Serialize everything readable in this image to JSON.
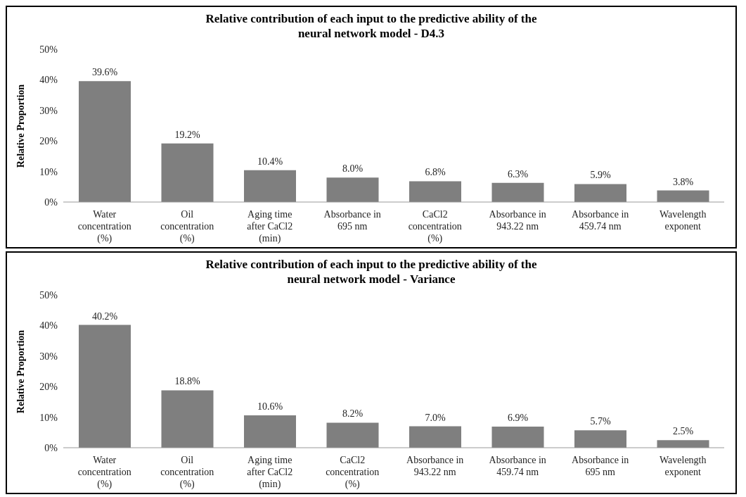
{
  "chart_data": [
    {
      "type": "bar",
      "title": "Relative contribution of each input to the predictive ability of the neural network model - D4.3",
      "ylabel": "Relative Proportion",
      "categories": [
        "Water concentration (%)",
        "Oil concentration (%)",
        "Aging time after CaCl2 (min)",
        "Absorbance in 695 nm",
        "CaCl2 concentration (%)",
        "Absorbance in 943.22 nm",
        "Absorbance in 459.74 nm",
        "Wavelength exponent"
      ],
      "values": [
        39.6,
        19.2,
        10.4,
        8.0,
        6.8,
        6.3,
        5.9,
        3.8
      ],
      "value_labels": [
        "39.6%",
        "19.2%",
        "10.4%",
        "8.0%",
        "6.8%",
        "6.3%",
        "5.9%",
        "3.8%"
      ],
      "color": "#7f7f7f",
      "ylim": [
        0,
        50
      ],
      "yticks": [
        {
          "value": 0,
          "label": "0%"
        },
        {
          "value": 10,
          "label": "10%"
        },
        {
          "value": 20,
          "label": "20%"
        },
        {
          "value": 30,
          "label": "30%"
        },
        {
          "value": 40,
          "label": "40%"
        },
        {
          "value": 50,
          "label": "50%"
        }
      ],
      "grid": false
    },
    {
      "type": "bar",
      "title": "Relative contribution of each input to the predictive ability of the neural network model - Variance",
      "ylabel": "Relative Proportion",
      "categories": [
        "Water concentration (%)",
        "Oil concentration (%)",
        "Aging time after CaCl2 (min)",
        "CaCl2 concentration (%)",
        "Absorbance in 943.22 nm",
        "Absorbance in 459.74 nm",
        "Absorbance in 695 nm",
        "Wavelength exponent"
      ],
      "values": [
        40.2,
        18.8,
        10.6,
        8.2,
        7.0,
        6.9,
        5.7,
        2.5
      ],
      "value_labels": [
        "40.2%",
        "18.8%",
        "10.6%",
        "8.2%",
        "7.0%",
        "6.9%",
        "5.7%",
        "2.5%"
      ],
      "color": "#7f7f7f",
      "ylim": [
        0,
        50
      ],
      "yticks": [
        {
          "value": 0,
          "label": "0%"
        },
        {
          "value": 10,
          "label": "10%"
        },
        {
          "value": 20,
          "label": "20%"
        },
        {
          "value": 30,
          "label": "30%"
        },
        {
          "value": 40,
          "label": "40%"
        },
        {
          "value": 50,
          "label": "50%"
        }
      ],
      "grid": false
    }
  ]
}
